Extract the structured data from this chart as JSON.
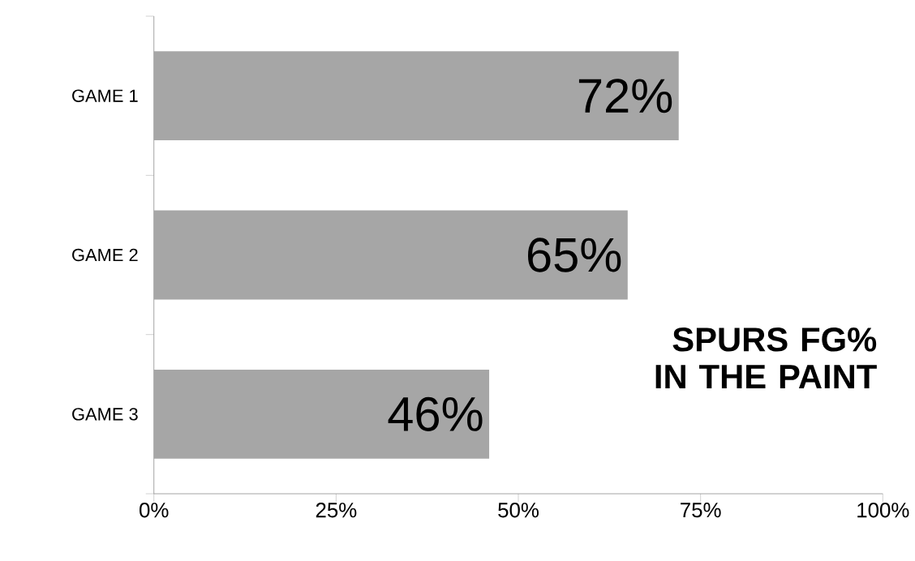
{
  "chart_data": {
    "type": "bar",
    "orientation": "horizontal",
    "title": "SPURS FG% IN THE PAINT",
    "categories": [
      "GAME 1",
      "GAME 2",
      "GAME 3"
    ],
    "values": [
      72,
      65,
      46
    ],
    "color": "#a6a6a6",
    "value_labels": [
      "72%",
      "65%",
      "46%"
    ],
    "xlim": [
      0,
      100
    ],
    "xticks": [
      {
        "value": 0,
        "label": "0%"
      },
      {
        "value": 25,
        "label": "25%"
      },
      {
        "value": 50,
        "label": "50%"
      },
      {
        "value": 75,
        "label": "75%"
      },
      {
        "value": 100,
        "label": "100%"
      }
    ]
  }
}
